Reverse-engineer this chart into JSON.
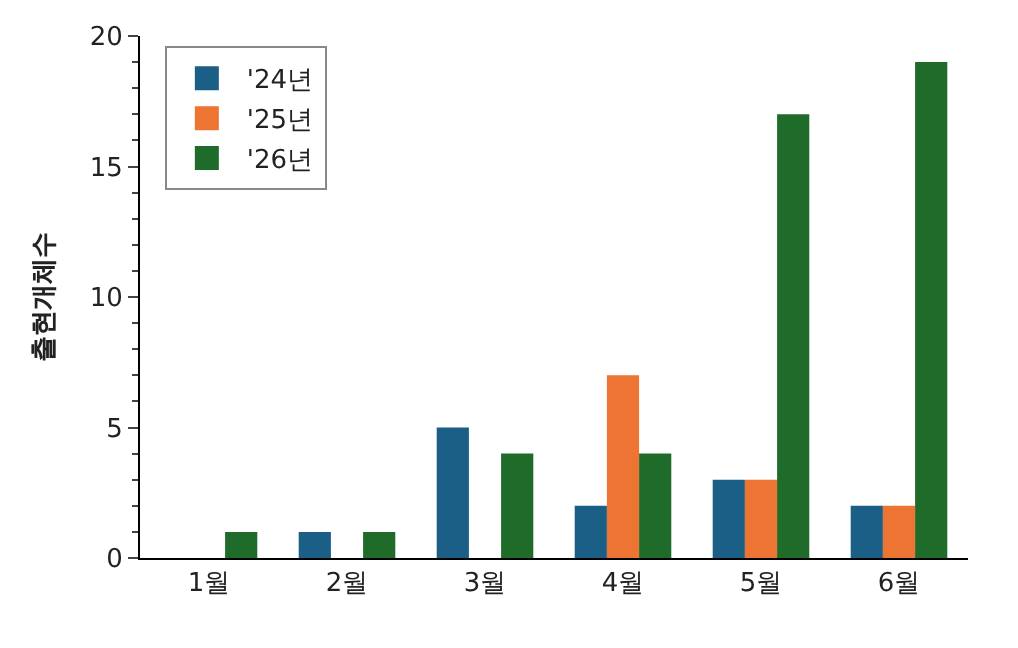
{
  "chart_data": {
    "type": "bar",
    "ylabel": "출현개체수",
    "categories": [
      "1월",
      "2월",
      "3월",
      "4월",
      "5월",
      "6월"
    ],
    "series": [
      {
        "name": "'24년",
        "color": "#1b5e86",
        "values": [
          null,
          1,
          5,
          2,
          3,
          2
        ]
      },
      {
        "name": "'25년",
        "color": "#ed7433",
        "values": [
          null,
          null,
          null,
          7,
          3,
          2
        ]
      },
      {
        "name": "'26년",
        "color": "#1e6b2a",
        "values": [
          1,
          1,
          4,
          4,
          17,
          19
        ]
      }
    ],
    "ylim": [
      0,
      20
    ],
    "yticks": [
      0,
      5,
      10,
      15,
      20
    ],
    "legend": "top left"
  }
}
